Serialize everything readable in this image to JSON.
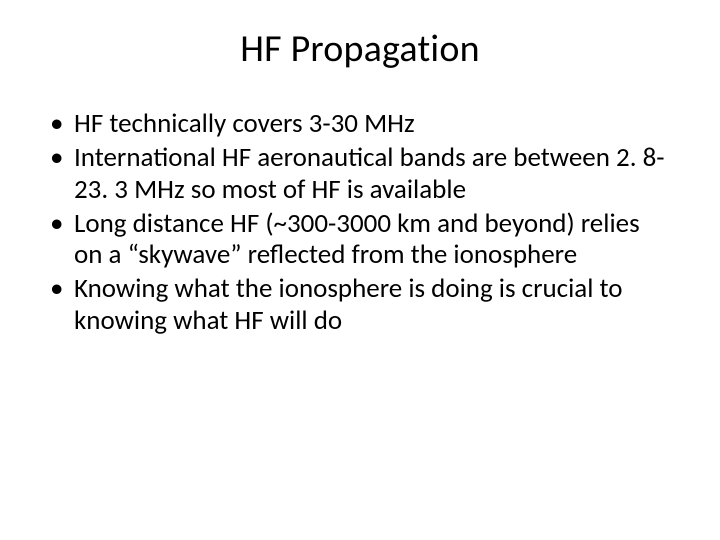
{
  "slide": {
    "title": "HF Propagation",
    "bullets": [
      "HF technically covers 3-30 MHz",
      "International HF aeronautical bands are between 2. 8-23. 3 MHz so most of HF is available",
      "Long distance HF (~300-3000 km and beyond) relies on a “skywave” reflected from the ionosphere",
      "Knowing what the ionosphere is doing is crucial to knowing what HF will do"
    ],
    "title_fontsize": 38,
    "body_fontsize": 27,
    "text_color": "#000000",
    "background_color": "#ffffff"
  }
}
